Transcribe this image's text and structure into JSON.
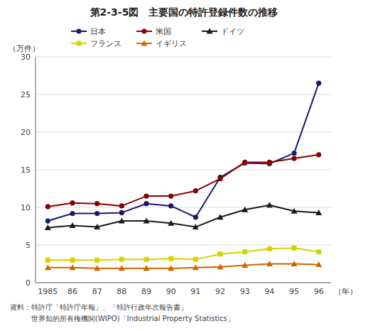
{
  "chart_data": {
    "type": "line",
    "title": "第2-3-5図　主要国の特許登録件数の推移",
    "y_label": "（万件）",
    "x_label": "（年）",
    "footnotes": [
      "資料：特許庁「特許庁年報」、「特許行政年次報告書」",
      "　　　世界知的所有権機関(WIPO)「Industrial Property Statistics」"
    ],
    "categories": [
      "1985",
      "86",
      "87",
      "88",
      "89",
      "90",
      "91",
      "92",
      "93",
      "94",
      "95",
      "96"
    ],
    "series": [
      {
        "name": "日本",
        "color": "#191970",
        "marker": "circle",
        "values": [
          8.2,
          9.2,
          9.2,
          9.3,
          10.5,
          10.2,
          8.7,
          14.0,
          15.9,
          15.8,
          17.2,
          26.5
        ]
      },
      {
        "name": "米国",
        "color": "#8b0000",
        "marker": "circle",
        "values": [
          10.1,
          10.6,
          10.5,
          10.2,
          11.5,
          11.5,
          12.2,
          13.8,
          16.0,
          16.0,
          16.5,
          17.0
        ]
      },
      {
        "name": "ドイツ",
        "color": "#1a1a1a",
        "marker": "triangle",
        "values": [
          7.3,
          7.6,
          7.4,
          8.2,
          8.2,
          7.9,
          7.4,
          8.7,
          9.7,
          10.3,
          9.5,
          9.3
        ]
      },
      {
        "name": "フランス",
        "color": "#d4d400",
        "marker": "square",
        "values": [
          3.0,
          3.0,
          3.0,
          3.1,
          3.1,
          3.2,
          3.1,
          3.8,
          4.1,
          4.5,
          4.6,
          4.1
        ]
      },
      {
        "name": "イギリス",
        "color": "#cc6600",
        "marker": "triangle",
        "values": [
          2.0,
          2.0,
          1.9,
          1.9,
          1.9,
          1.9,
          2.0,
          2.1,
          2.3,
          2.5,
          2.5,
          2.4
        ]
      }
    ],
    "ylim": [
      0,
      30
    ],
    "yticks": [
      0,
      5,
      10,
      15,
      20,
      25,
      30
    ],
    "grid": true,
    "legend": "upper left"
  }
}
